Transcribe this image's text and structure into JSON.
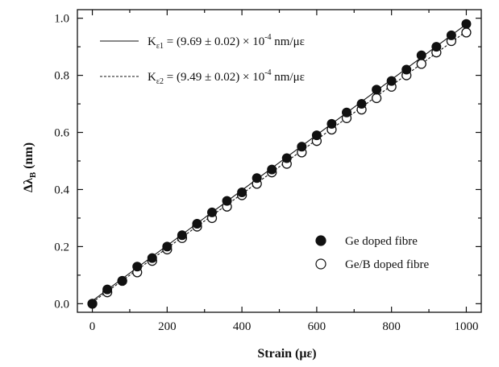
{
  "chart_data": {
    "type": "scatter",
    "title": "",
    "xlabel": "Strain (με)",
    "ylabel_main": "Δλ",
    "ylabel_sub": "B",
    "ylabel_unit": " (nm)",
    "xlim": [
      -40,
      1040
    ],
    "ylim": [
      -0.03,
      1.03
    ],
    "x_ticks": [
      0,
      200,
      400,
      600,
      800,
      1000
    ],
    "y_ticks": [
      0.0,
      0.2,
      0.4,
      0.6,
      0.8,
      1.0
    ],
    "x_tick_labels": [
      "0",
      "200",
      "400",
      "600",
      "800",
      "1000"
    ],
    "y_tick_labels": [
      "0.0",
      "0.2",
      "0.4",
      "0.6",
      "0.8",
      "1.0"
    ],
    "grid": false,
    "series": [
      {
        "name": "Ge doped fibre",
        "marker": "filled-circle",
        "x": [
          0,
          40,
          80,
          120,
          160,
          200,
          240,
          280,
          320,
          360,
          400,
          440,
          480,
          520,
          560,
          600,
          640,
          680,
          720,
          760,
          800,
          840,
          880,
          920,
          960,
          1000
        ],
        "y": [
          0.0,
          0.05,
          0.08,
          0.13,
          0.16,
          0.2,
          0.24,
          0.28,
          0.32,
          0.36,
          0.39,
          0.44,
          0.47,
          0.51,
          0.55,
          0.59,
          0.63,
          0.67,
          0.7,
          0.75,
          0.78,
          0.82,
          0.87,
          0.9,
          0.94,
          0.98
        ]
      },
      {
        "name": "Ge/B doped fibre",
        "marker": "open-circle",
        "x": [
          0,
          40,
          80,
          120,
          160,
          200,
          240,
          280,
          320,
          360,
          400,
          440,
          480,
          520,
          560,
          600,
          640,
          680,
          720,
          760,
          800,
          840,
          880,
          920,
          960,
          1000
        ],
        "y": [
          0.0,
          0.04,
          0.08,
          0.11,
          0.15,
          0.19,
          0.23,
          0.27,
          0.3,
          0.34,
          0.38,
          0.42,
          0.46,
          0.49,
          0.53,
          0.57,
          0.61,
          0.65,
          0.68,
          0.72,
          0.76,
          0.8,
          0.84,
          0.88,
          0.92,
          0.95
        ]
      }
    ],
    "fits": [
      {
        "label_main": "K",
        "label_sub": "ε1",
        "label_rest": " = (9.69 ± 0.02) × 10",
        "label_exp": "-4",
        "label_unit": " nm/με",
        "style": "solid",
        "x0": 0,
        "y0": 0.01,
        "x1": 1000,
        "y1": 0.979
      },
      {
        "label_main": "K",
        "label_sub": "ε2",
        "label_rest": " = (9.49 ± 0.02) × 10",
        "label_exp": "-4",
        "label_unit": " nm/με",
        "style": "dashed",
        "x0": 0,
        "y0": 0.005,
        "x1": 1000,
        "y1": 0.954
      }
    ],
    "legend_position": "lower-right",
    "fit_legend_position": "upper-left"
  }
}
